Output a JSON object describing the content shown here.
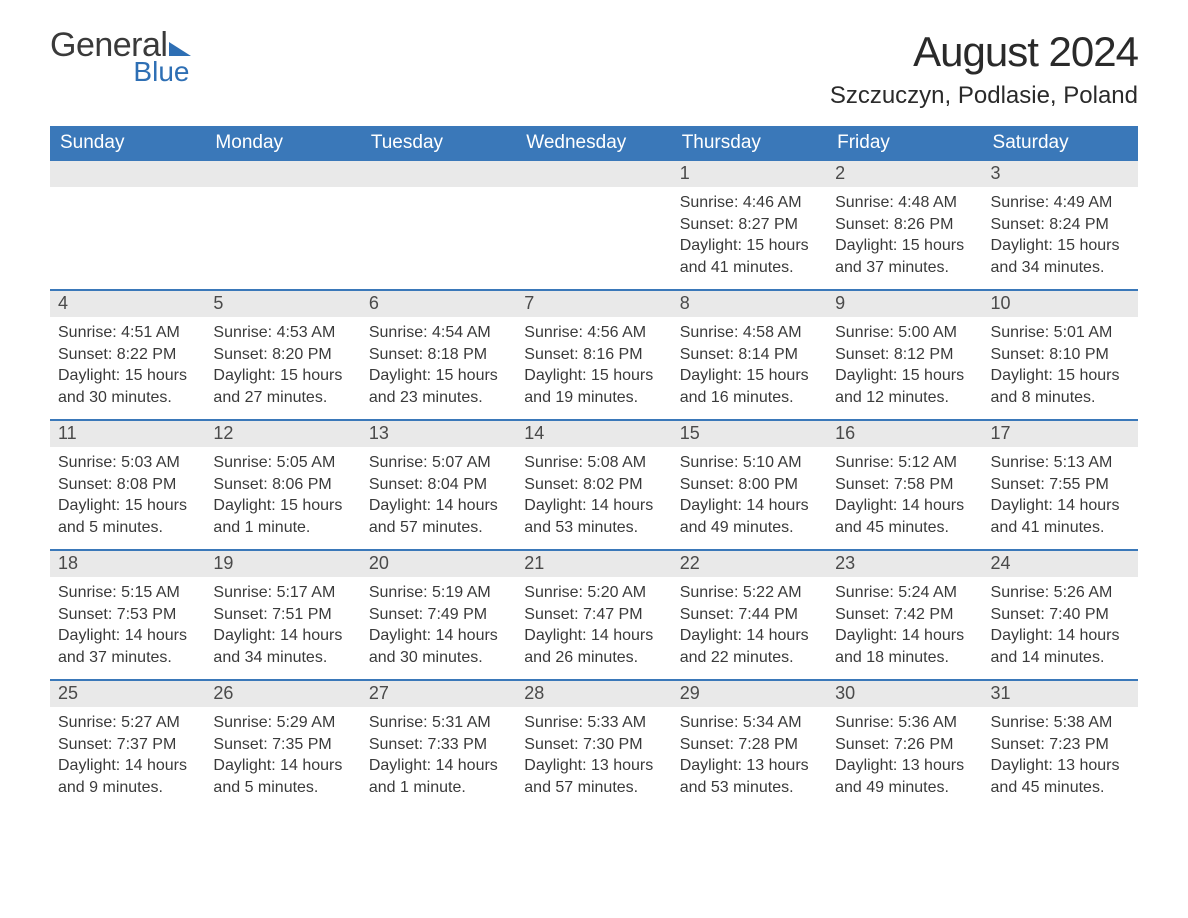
{
  "logo": {
    "text_general": "General",
    "text_blue": "Blue"
  },
  "title": "August 2024",
  "location": "Szczuczyn, Podlasie, Poland",
  "colors": {
    "header_bg": "#3a78b9",
    "header_text": "#ffffff",
    "daynum_bg": "#e9e9e9",
    "daynum_text": "#4a4a4a",
    "body_text": "#3a3a3a",
    "week_divider": "#3a78b9",
    "logo_dark": "#3a3a3a",
    "logo_blue": "#2e6fb4",
    "page_bg": "#ffffff"
  },
  "typography": {
    "title_fontsize": 42,
    "location_fontsize": 24,
    "header_fontsize": 19,
    "daynum_fontsize": 18,
    "body_fontsize": 16,
    "font_family": "Arial"
  },
  "layout": {
    "columns": 7,
    "rows": 5,
    "first_day_column_index": 4
  },
  "day_headers": [
    "Sunday",
    "Monday",
    "Tuesday",
    "Wednesday",
    "Thursday",
    "Friday",
    "Saturday"
  ],
  "weeks": [
    [
      null,
      null,
      null,
      null,
      {
        "n": "1",
        "sunrise": "Sunrise: 4:46 AM",
        "sunset": "Sunset: 8:27 PM",
        "daylight": "Daylight: 15 hours and 41 minutes."
      },
      {
        "n": "2",
        "sunrise": "Sunrise: 4:48 AM",
        "sunset": "Sunset: 8:26 PM",
        "daylight": "Daylight: 15 hours and 37 minutes."
      },
      {
        "n": "3",
        "sunrise": "Sunrise: 4:49 AM",
        "sunset": "Sunset: 8:24 PM",
        "daylight": "Daylight: 15 hours and 34 minutes."
      }
    ],
    [
      {
        "n": "4",
        "sunrise": "Sunrise: 4:51 AM",
        "sunset": "Sunset: 8:22 PM",
        "daylight": "Daylight: 15 hours and 30 minutes."
      },
      {
        "n": "5",
        "sunrise": "Sunrise: 4:53 AM",
        "sunset": "Sunset: 8:20 PM",
        "daylight": "Daylight: 15 hours and 27 minutes."
      },
      {
        "n": "6",
        "sunrise": "Sunrise: 4:54 AM",
        "sunset": "Sunset: 8:18 PM",
        "daylight": "Daylight: 15 hours and 23 minutes."
      },
      {
        "n": "7",
        "sunrise": "Sunrise: 4:56 AM",
        "sunset": "Sunset: 8:16 PM",
        "daylight": "Daylight: 15 hours and 19 minutes."
      },
      {
        "n": "8",
        "sunrise": "Sunrise: 4:58 AM",
        "sunset": "Sunset: 8:14 PM",
        "daylight": "Daylight: 15 hours and 16 minutes."
      },
      {
        "n": "9",
        "sunrise": "Sunrise: 5:00 AM",
        "sunset": "Sunset: 8:12 PM",
        "daylight": "Daylight: 15 hours and 12 minutes."
      },
      {
        "n": "10",
        "sunrise": "Sunrise: 5:01 AM",
        "sunset": "Sunset: 8:10 PM",
        "daylight": "Daylight: 15 hours and 8 minutes."
      }
    ],
    [
      {
        "n": "11",
        "sunrise": "Sunrise: 5:03 AM",
        "sunset": "Sunset: 8:08 PM",
        "daylight": "Daylight: 15 hours and 5 minutes."
      },
      {
        "n": "12",
        "sunrise": "Sunrise: 5:05 AM",
        "sunset": "Sunset: 8:06 PM",
        "daylight": "Daylight: 15 hours and 1 minute."
      },
      {
        "n": "13",
        "sunrise": "Sunrise: 5:07 AM",
        "sunset": "Sunset: 8:04 PM",
        "daylight": "Daylight: 14 hours and 57 minutes."
      },
      {
        "n": "14",
        "sunrise": "Sunrise: 5:08 AM",
        "sunset": "Sunset: 8:02 PM",
        "daylight": "Daylight: 14 hours and 53 minutes."
      },
      {
        "n": "15",
        "sunrise": "Sunrise: 5:10 AM",
        "sunset": "Sunset: 8:00 PM",
        "daylight": "Daylight: 14 hours and 49 minutes."
      },
      {
        "n": "16",
        "sunrise": "Sunrise: 5:12 AM",
        "sunset": "Sunset: 7:58 PM",
        "daylight": "Daylight: 14 hours and 45 minutes."
      },
      {
        "n": "17",
        "sunrise": "Sunrise: 5:13 AM",
        "sunset": "Sunset: 7:55 PM",
        "daylight": "Daylight: 14 hours and 41 minutes."
      }
    ],
    [
      {
        "n": "18",
        "sunrise": "Sunrise: 5:15 AM",
        "sunset": "Sunset: 7:53 PM",
        "daylight": "Daylight: 14 hours and 37 minutes."
      },
      {
        "n": "19",
        "sunrise": "Sunrise: 5:17 AM",
        "sunset": "Sunset: 7:51 PM",
        "daylight": "Daylight: 14 hours and 34 minutes."
      },
      {
        "n": "20",
        "sunrise": "Sunrise: 5:19 AM",
        "sunset": "Sunset: 7:49 PM",
        "daylight": "Daylight: 14 hours and 30 minutes."
      },
      {
        "n": "21",
        "sunrise": "Sunrise: 5:20 AM",
        "sunset": "Sunset: 7:47 PM",
        "daylight": "Daylight: 14 hours and 26 minutes."
      },
      {
        "n": "22",
        "sunrise": "Sunrise: 5:22 AM",
        "sunset": "Sunset: 7:44 PM",
        "daylight": "Daylight: 14 hours and 22 minutes."
      },
      {
        "n": "23",
        "sunrise": "Sunrise: 5:24 AM",
        "sunset": "Sunset: 7:42 PM",
        "daylight": "Daylight: 14 hours and 18 minutes."
      },
      {
        "n": "24",
        "sunrise": "Sunrise: 5:26 AM",
        "sunset": "Sunset: 7:40 PM",
        "daylight": "Daylight: 14 hours and 14 minutes."
      }
    ],
    [
      {
        "n": "25",
        "sunrise": "Sunrise: 5:27 AM",
        "sunset": "Sunset: 7:37 PM",
        "daylight": "Daylight: 14 hours and 9 minutes."
      },
      {
        "n": "26",
        "sunrise": "Sunrise: 5:29 AM",
        "sunset": "Sunset: 7:35 PM",
        "daylight": "Daylight: 14 hours and 5 minutes."
      },
      {
        "n": "27",
        "sunrise": "Sunrise: 5:31 AM",
        "sunset": "Sunset: 7:33 PM",
        "daylight": "Daylight: 14 hours and 1 minute."
      },
      {
        "n": "28",
        "sunrise": "Sunrise: 5:33 AM",
        "sunset": "Sunset: 7:30 PM",
        "daylight": "Daylight: 13 hours and 57 minutes."
      },
      {
        "n": "29",
        "sunrise": "Sunrise: 5:34 AM",
        "sunset": "Sunset: 7:28 PM",
        "daylight": "Daylight: 13 hours and 53 minutes."
      },
      {
        "n": "30",
        "sunrise": "Sunrise: 5:36 AM",
        "sunset": "Sunset: 7:26 PM",
        "daylight": "Daylight: 13 hours and 49 minutes."
      },
      {
        "n": "31",
        "sunrise": "Sunrise: 5:38 AM",
        "sunset": "Sunset: 7:23 PM",
        "daylight": "Daylight: 13 hours and 45 minutes."
      }
    ]
  ]
}
